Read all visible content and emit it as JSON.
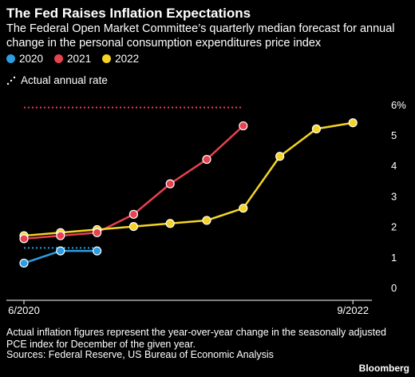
{
  "header": {
    "title": "The Fed Raises Inflation Expectations",
    "subtitle": "The Federal Open Market Committee’s quarterly median forecast for annual change in the personal consumption expenditures price index"
  },
  "legend": {
    "items": [
      {
        "label": "2020",
        "color": "#2b9de0"
      },
      {
        "label": "2021",
        "color": "#e8414f"
      },
      {
        "label": "2022",
        "color": "#f5d423"
      }
    ],
    "actual_label": "Actual annual rate",
    "actual_icon": "dotted-line-icon"
  },
  "chart_data": {
    "type": "line",
    "x_tick_labels": [
      "6/2020",
      "9/2022"
    ],
    "y_tick_labels": [
      "0",
      "1",
      "2",
      "3",
      "4",
      "5",
      "6%"
    ],
    "ylim": [
      0,
      6
    ],
    "series": [
      {
        "name": "2020",
        "color": "#2b9de0",
        "x": [
          "6/2020",
          "9/2020",
          "12/2020"
        ],
        "values": [
          0.8,
          1.2,
          1.2
        ]
      },
      {
        "name": "2021",
        "color": "#e8414f",
        "x": [
          "6/2020",
          "9/2020",
          "12/2020",
          "3/2021",
          "6/2021",
          "9/2021",
          "12/2021"
        ],
        "values": [
          1.6,
          1.7,
          1.8,
          2.4,
          3.4,
          4.2,
          5.3
        ]
      },
      {
        "name": "2022",
        "color": "#f5d423",
        "x": [
          "6/2020",
          "9/2020",
          "12/2020",
          "3/2021",
          "6/2021",
          "9/2021",
          "12/2021",
          "3/2022",
          "6/2022",
          "9/2022"
        ],
        "values": [
          1.7,
          1.8,
          1.9,
          2.0,
          2.1,
          2.2,
          2.6,
          4.3,
          5.2,
          5.4
        ]
      }
    ],
    "actual": [
      {
        "year": "2020",
        "color": "#2b9de0",
        "x_from": "6/2020",
        "x_to": "12/2020",
        "value": 1.3
      },
      {
        "year": "2021",
        "color": "#e8414f",
        "x_from": "6/2020",
        "x_to": "12/2021",
        "value": 5.9
      }
    ],
    "grid": false
  },
  "footer": {
    "footnote": "Actual inflation figures represent the year-over-year change in the seasonally adjusted PCE index for December of the given year.",
    "sources": "Sources: Federal Reserve, US Bureau of Economic Analysis",
    "brand": "Bloomberg"
  }
}
